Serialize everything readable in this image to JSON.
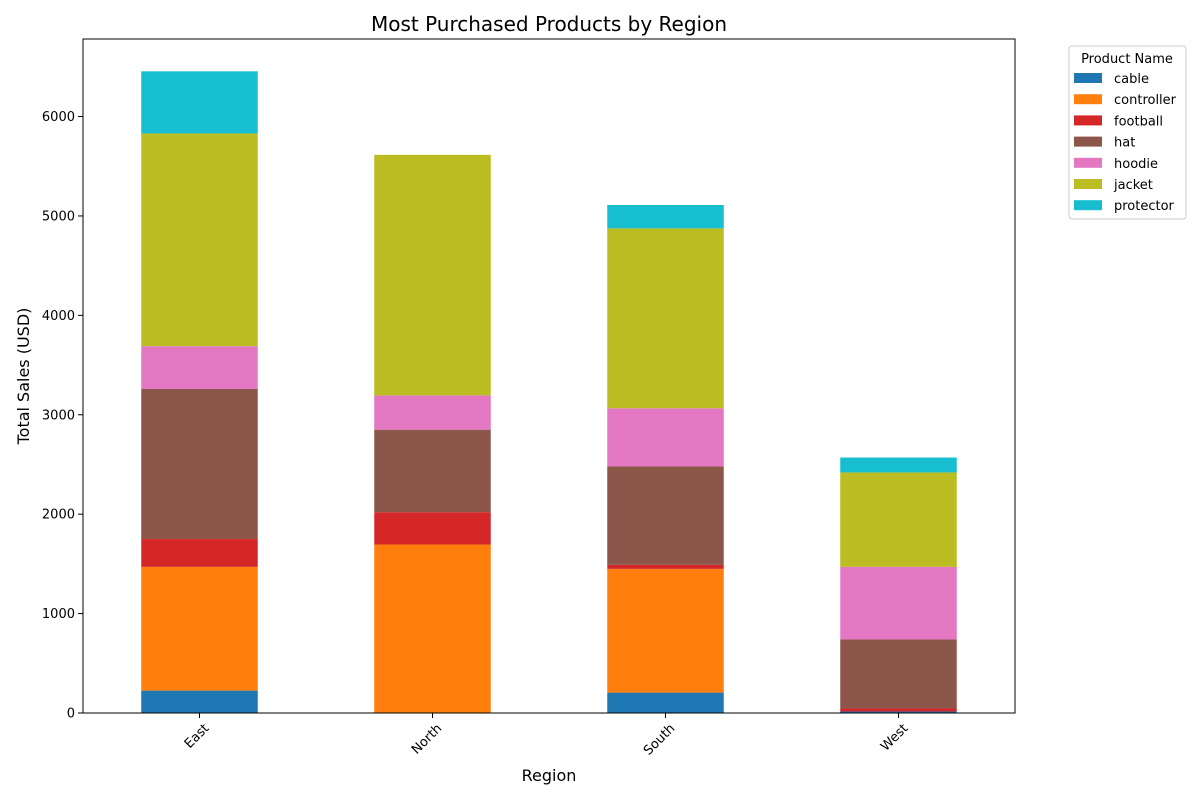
{
  "chart_data": {
    "type": "bar",
    "stacked": true,
    "title": "Most Purchased Products by Region",
    "xlabel": "Region",
    "ylabel": "Total Sales (USD)",
    "categories": [
      "East",
      "North",
      "South",
      "West"
    ],
    "ylim": [
      0,
      6780
    ],
    "yticks": [
      0,
      1000,
      2000,
      3000,
      4000,
      5000,
      6000
    ],
    "grid": false,
    "legend": {
      "title": "Product Name",
      "placement": "outside top-right"
    },
    "series": [
      {
        "name": "cable",
        "color": "#1f77b4",
        "values": [
          225,
          0,
          205,
          15
        ]
      },
      {
        "name": "controller",
        "color": "#ff7f0e",
        "values": [
          1245,
          1695,
          1245,
          0
        ]
      },
      {
        "name": "football",
        "color": "#d62728",
        "values": [
          280,
          325,
          40,
          30
        ]
      },
      {
        "name": "hat",
        "color": "#8c564b",
        "values": [
          1510,
          830,
          990,
          695
        ]
      },
      {
        "name": "hoodie",
        "color": "#e377c2",
        "values": [
          430,
          345,
          585,
          730
        ]
      },
      {
        "name": "jacket",
        "color": "#bcbd22",
        "values": [
          2140,
          2420,
          1810,
          950
        ]
      },
      {
        "name": "protector",
        "color": "#17becf",
        "values": [
          625,
          0,
          235,
          150
        ]
      }
    ]
  }
}
